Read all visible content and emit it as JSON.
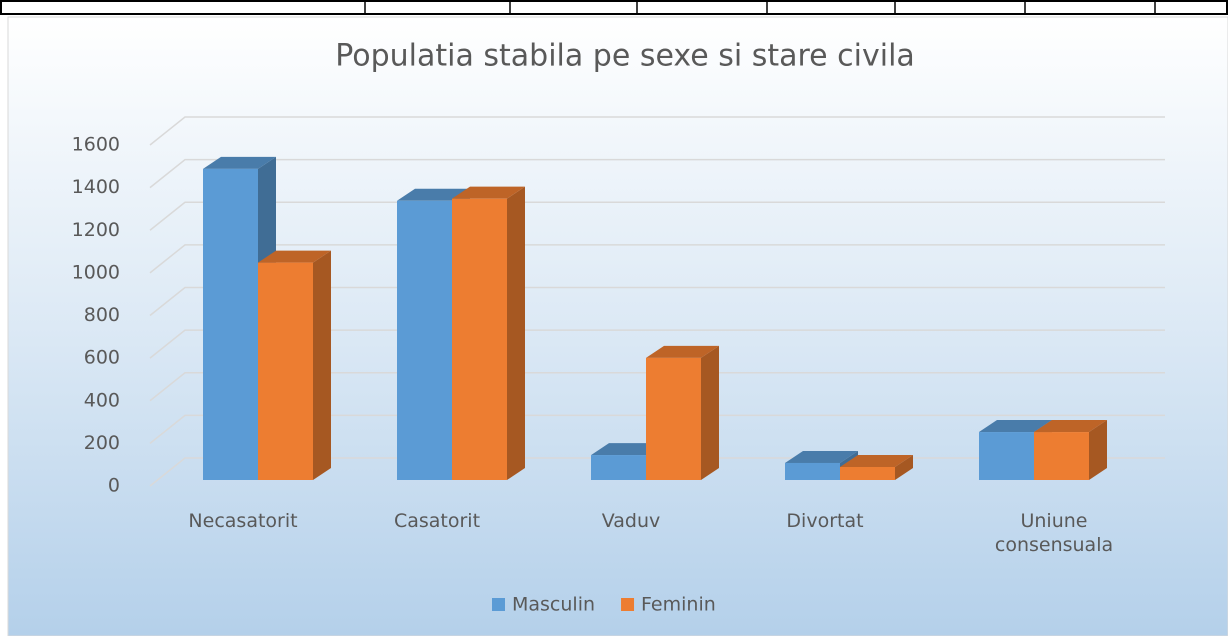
{
  "chart_data": {
    "type": "bar3d",
    "title": "Populatia stabila pe sexe si stare civila",
    "categories": [
      "Necasatorit",
      "Casatorit",
      "Vaduv",
      "Divortat",
      "Uniune consensuala"
    ],
    "series": [
      {
        "name": "Masculin",
        "color": "#5b9bd5",
        "values": [
          1460,
          1310,
          117,
          80,
          225
        ]
      },
      {
        "name": "Feminin",
        "color": "#ed7d31",
        "values": [
          1020,
          1320,
          573,
          61,
          225
        ]
      }
    ],
    "ylim": [
      0,
      1600
    ],
    "yticks": [
      0,
      200,
      400,
      600,
      800,
      1000,
      1200,
      1400,
      1600
    ],
    "grid": true,
    "legend": "bottom"
  }
}
